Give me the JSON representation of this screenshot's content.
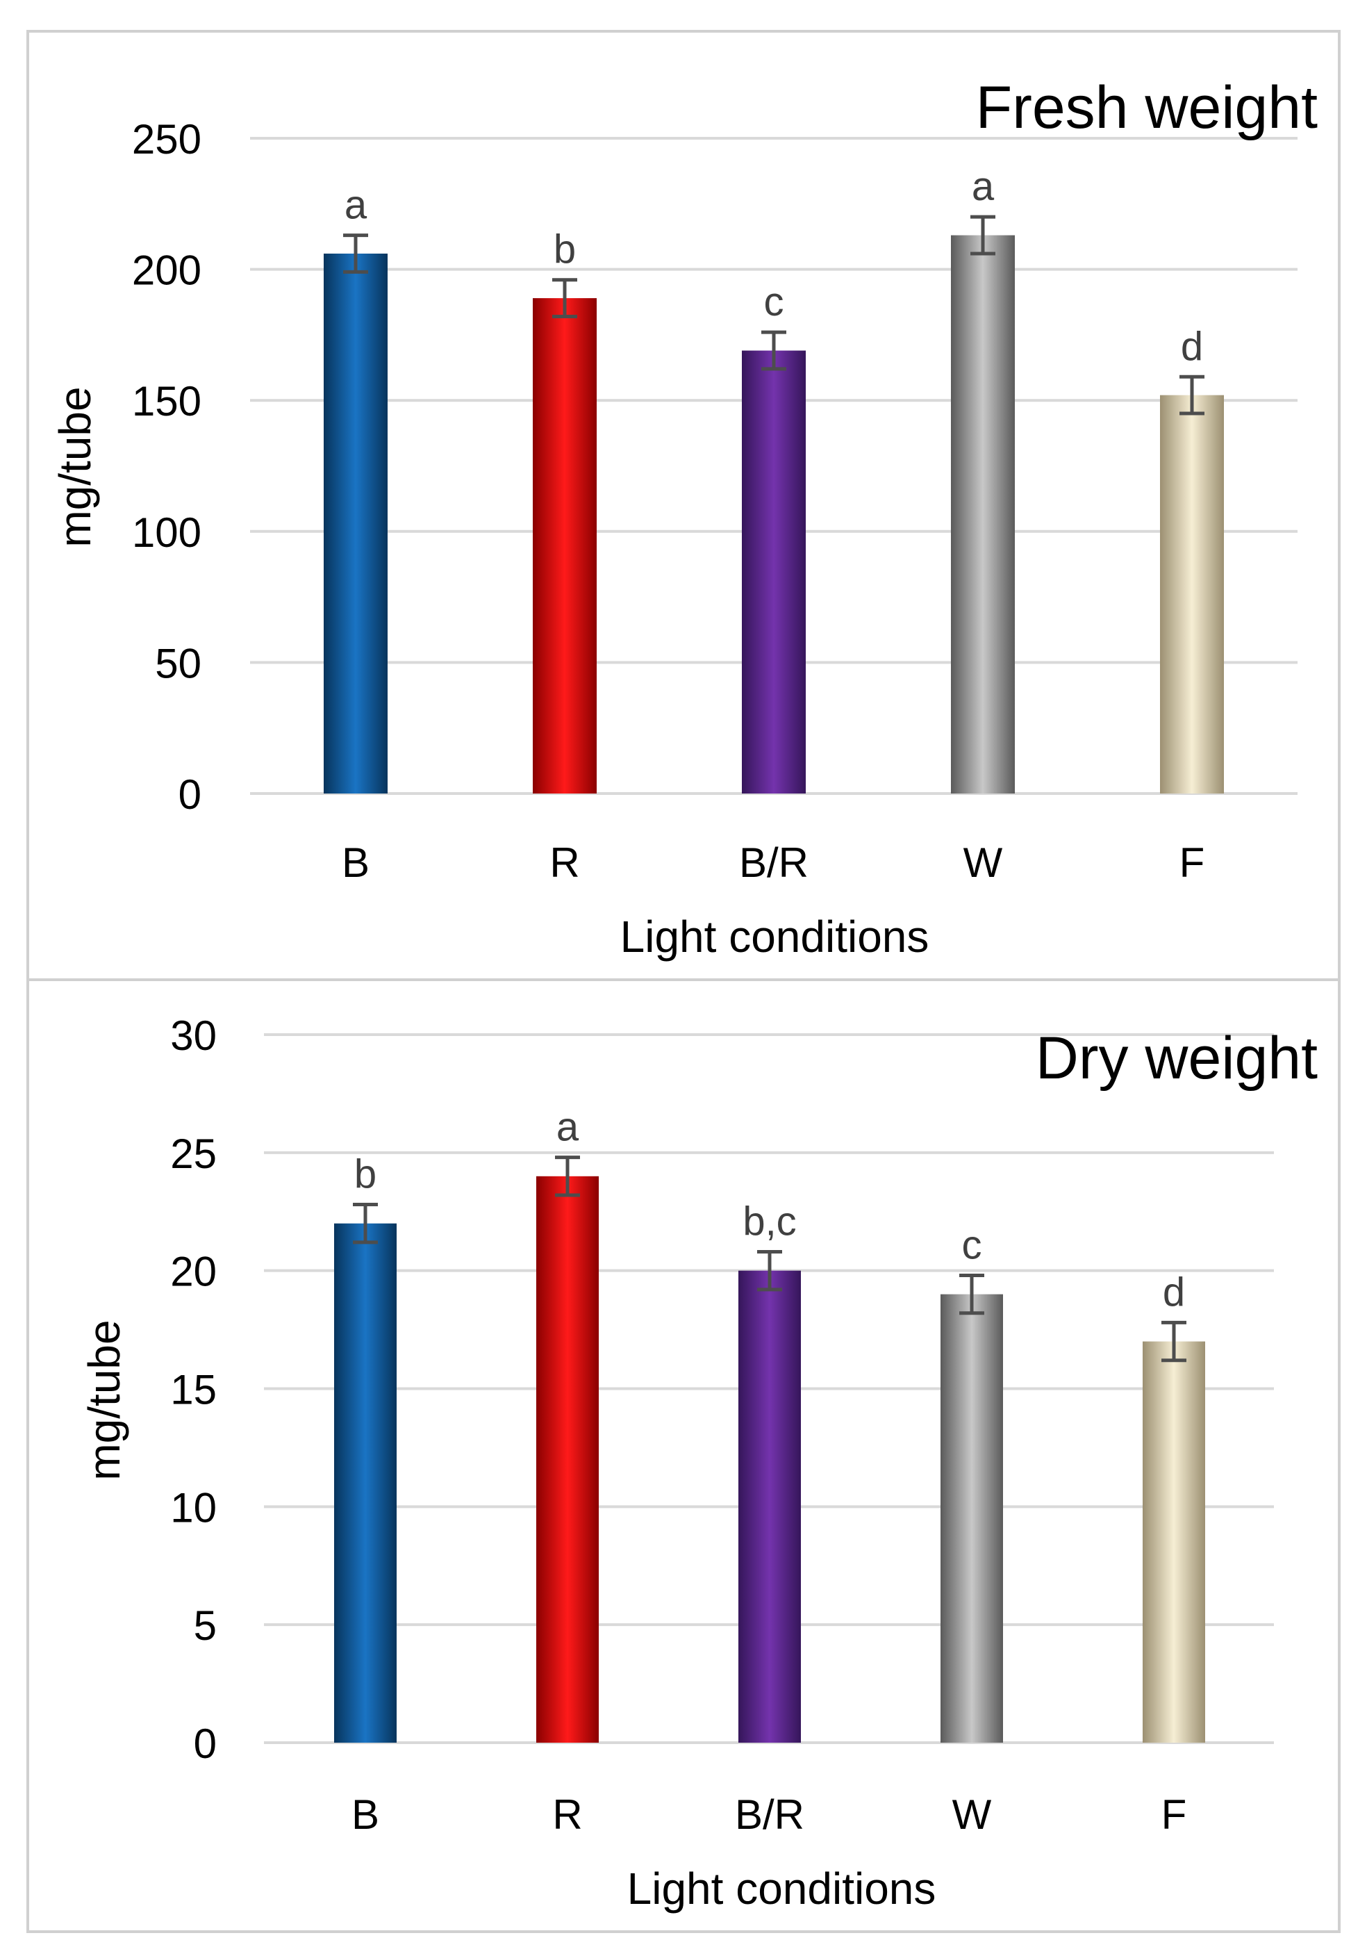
{
  "chart_data": [
    {
      "type": "bar",
      "title": "Fresh weight",
      "xlabel": "Light conditions",
      "ylabel": "mg/tube",
      "categories": [
        "B",
        "R",
        "B/R",
        "W",
        "F"
      ],
      "values": [
        206,
        189,
        169,
        213,
        152
      ],
      "errors": [
        7,
        7,
        7,
        7,
        7
      ],
      "significance_letters": [
        "a",
        "b",
        "c",
        "a",
        "d"
      ],
      "ylim": [
        0,
        250
      ],
      "yticks": [
        0,
        50,
        100,
        150,
        200,
        250
      ],
      "ytick_labels": [
        "0",
        "50",
        "100",
        "150",
        "200",
        "250"
      ],
      "grid": true,
      "legend": false,
      "colors": [
        "#0a5a9c",
        "#e60000",
        "#5c2a8e",
        "#a6a6a6",
        "#ece2c4"
      ]
    },
    {
      "type": "bar",
      "title": "Dry weight",
      "xlabel": "Light conditions",
      "ylabel": "mg/tube",
      "categories": [
        "B",
        "R",
        "B/R",
        "W",
        "F"
      ],
      "values": [
        22,
        24,
        20,
        19,
        17
      ],
      "errors": [
        0.8,
        0.8,
        0.8,
        0.8,
        0.8
      ],
      "significance_letters": [
        "b",
        "a",
        "b,c",
        "c",
        "d"
      ],
      "ylim": [
        0,
        30
      ],
      "yticks": [
        0,
        5,
        10,
        15,
        20,
        25,
        30
      ],
      "ytick_labels": [
        "0",
        "5",
        "10",
        "15",
        "20",
        "25",
        "30"
      ],
      "grid": true,
      "legend": false,
      "colors": [
        "#0a5a9c",
        "#e60000",
        "#5c2a8e",
        "#a6a6a6",
        "#ece2c4"
      ]
    }
  ]
}
